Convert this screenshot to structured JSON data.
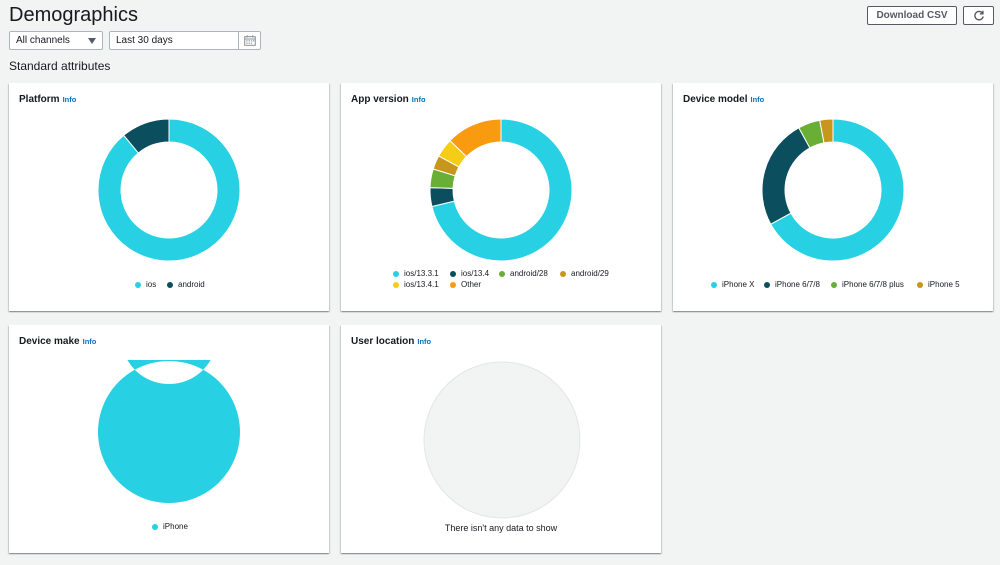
{
  "header": {
    "title": "Demographics",
    "download_label": "Download CSV",
    "refresh_icon": "refresh-icon"
  },
  "filters": {
    "channel": "All channels",
    "date_range": "Last 30 days"
  },
  "section_title": "Standard attributes",
  "cards": {
    "platform": {
      "title": "Platform",
      "info": "Info"
    },
    "app_version": {
      "title": "App version",
      "info": "Info"
    },
    "device_model": {
      "title": "Device model",
      "info": "Info"
    },
    "device_make": {
      "title": "Device make",
      "info": "Info"
    },
    "user_location": {
      "title": "User location",
      "info": "Info",
      "empty": "There isn't any data to show"
    }
  },
  "colors": {
    "cyan": "#27d0e2",
    "dark_teal": "#0b4e5d",
    "green": "#6aaf35",
    "olive": "#c7961a",
    "yellow": "#f5cd16",
    "orange": "#f89b11",
    "empty": "#f2f3f3"
  },
  "chart_data": [
    {
      "type": "pie",
      "title": "Platform",
      "categories": [
        "ios",
        "android"
      ],
      "values": [
        89,
        11
      ],
      "colors": [
        "#27d0e2",
        "#0b4e5d"
      ]
    },
    {
      "type": "pie",
      "title": "App version",
      "categories": [
        "ios/13.3.1",
        "ios/13.4",
        "android/28",
        "android/29",
        "ios/13.4.1",
        "Other"
      ],
      "values": [
        67,
        4,
        4,
        3,
        4,
        12
      ],
      "colors": [
        "#27d0e2",
        "#0b4e5d",
        "#6aaf35",
        "#c7961a",
        "#f5cd16",
        "#f89b11"
      ]
    },
    {
      "type": "pie",
      "title": "Device model",
      "categories": [
        "iPhone X",
        "iPhone 6/7/8",
        "iPhone 6/7/8 plus",
        "iPhone 5"
      ],
      "values": [
        67,
        25,
        5,
        3
      ],
      "colors": [
        "#27d0e2",
        "#0b4e5d",
        "#6aaf35",
        "#c7961a"
      ]
    },
    {
      "type": "pie",
      "title": "Device make",
      "categories": [
        "iPhone"
      ],
      "values": [
        100
      ],
      "colors": [
        "#27d0e2"
      ]
    }
  ]
}
